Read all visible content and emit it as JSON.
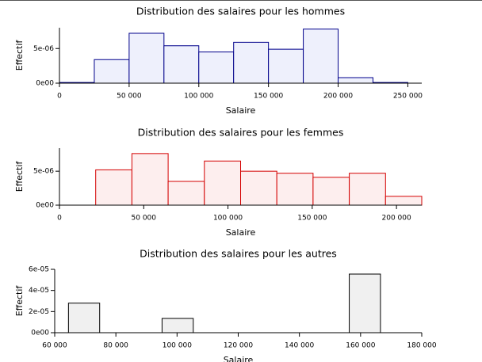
{
  "chart_data": [
    {
      "type": "histogram",
      "title": "Distribution des salaires pour les hommes",
      "xlabel": "Salaire",
      "ylabel": "Effectif",
      "bins": [
        0,
        25000,
        50000,
        75000,
        100000,
        125000,
        150000,
        175000,
        200000,
        225000,
        250000
      ],
      "values": [
        1e-07,
        3.4e-06,
        7.2e-06,
        5.4e-06,
        4.5e-06,
        5.9e-06,
        4.9e-06,
        7.8e-06,
        8e-07,
        1e-07
      ],
      "color": "#eef0fc",
      "edgecolor": "#00008b",
      "xlim": [
        0,
        260000
      ],
      "ylim": [
        0,
        8e-06
      ],
      "xticks": [
        0,
        {
          "value": 50000,
          "label": "50 000"
        },
        {
          "value": 100000,
          "label": "100 000"
        },
        {
          "value": 150000,
          "label": "150 000"
        },
        {
          "value": 200000,
          "label": "200 000"
        },
        {
          "value": 250000,
          "label": "250 000"
        }
      ],
      "yticks": [
        {
          "value": 0,
          "label": "0e00"
        },
        {
          "value": 5e-06,
          "label": "5e-06"
        }
      ]
    },
    {
      "type": "histogram",
      "title": "Distribution des salaires pour les femmes",
      "xlabel": "Salaire",
      "ylabel": "Effectif",
      "bins": [
        21500,
        43000,
        64500,
        86000,
        107500,
        129000,
        150500,
        172000,
        193500,
        215000
      ],
      "values": [
        5.2e-06,
        7.6e-06,
        3.5e-06,
        6.5e-06,
        5e-06,
        4.7e-06,
        4.1e-06,
        4.7e-06,
        1.3e-06
      ],
      "color": "#fdeeee",
      "edgecolor": "#d40000",
      "xlim": [
        0,
        215000
      ],
      "ylim": [
        0,
        8.4e-06
      ],
      "xticks": [
        0,
        {
          "value": 50000,
          "label": "50 000"
        },
        {
          "value": 100000,
          "label": "100 000"
        },
        {
          "value": 150000,
          "label": "150 000"
        },
        {
          "value": 200000,
          "label": "200 000"
        }
      ],
      "yticks": [
        {
          "value": 0,
          "label": "0e00"
        },
        {
          "value": 5e-06,
          "label": "5e-06"
        }
      ]
    },
    {
      "type": "histogram",
      "title": "Distribution des salaires pour les autres",
      "xlabel": "Salaire",
      "ylabel": "Effectif",
      "bins": [
        64500,
        74700,
        84900,
        95100,
        105300,
        115500,
        125700,
        135900,
        146100,
        156300,
        166500
      ],
      "values": [
        2.8e-05,
        0,
        0,
        1.35e-05,
        0,
        0,
        0,
        0,
        0,
        5.55e-05
      ],
      "color": "#f0f0f0",
      "edgecolor": "#000000",
      "xlim": [
        60000,
        180000
      ],
      "ylim": [
        0,
        6e-05
      ],
      "xticks": [
        {
          "value": 60000,
          "label": "60 000"
        },
        {
          "value": 80000,
          "label": "80 000"
        },
        {
          "value": 100000,
          "label": "100 000"
        },
        {
          "value": 120000,
          "label": "120 000"
        },
        {
          "value": 140000,
          "label": "140 000"
        },
        {
          "value": 160000,
          "label": "160 000"
        },
        {
          "value": 180000,
          "label": "180 000"
        }
      ],
      "yticks": [
        {
          "value": 0,
          "label": "0e00"
        },
        {
          "value": 2e-05,
          "label": "2e-05"
        },
        {
          "value": 4e-05,
          "label": "4e-05"
        },
        {
          "value": 6e-05,
          "label": "6e-05"
        }
      ]
    }
  ]
}
